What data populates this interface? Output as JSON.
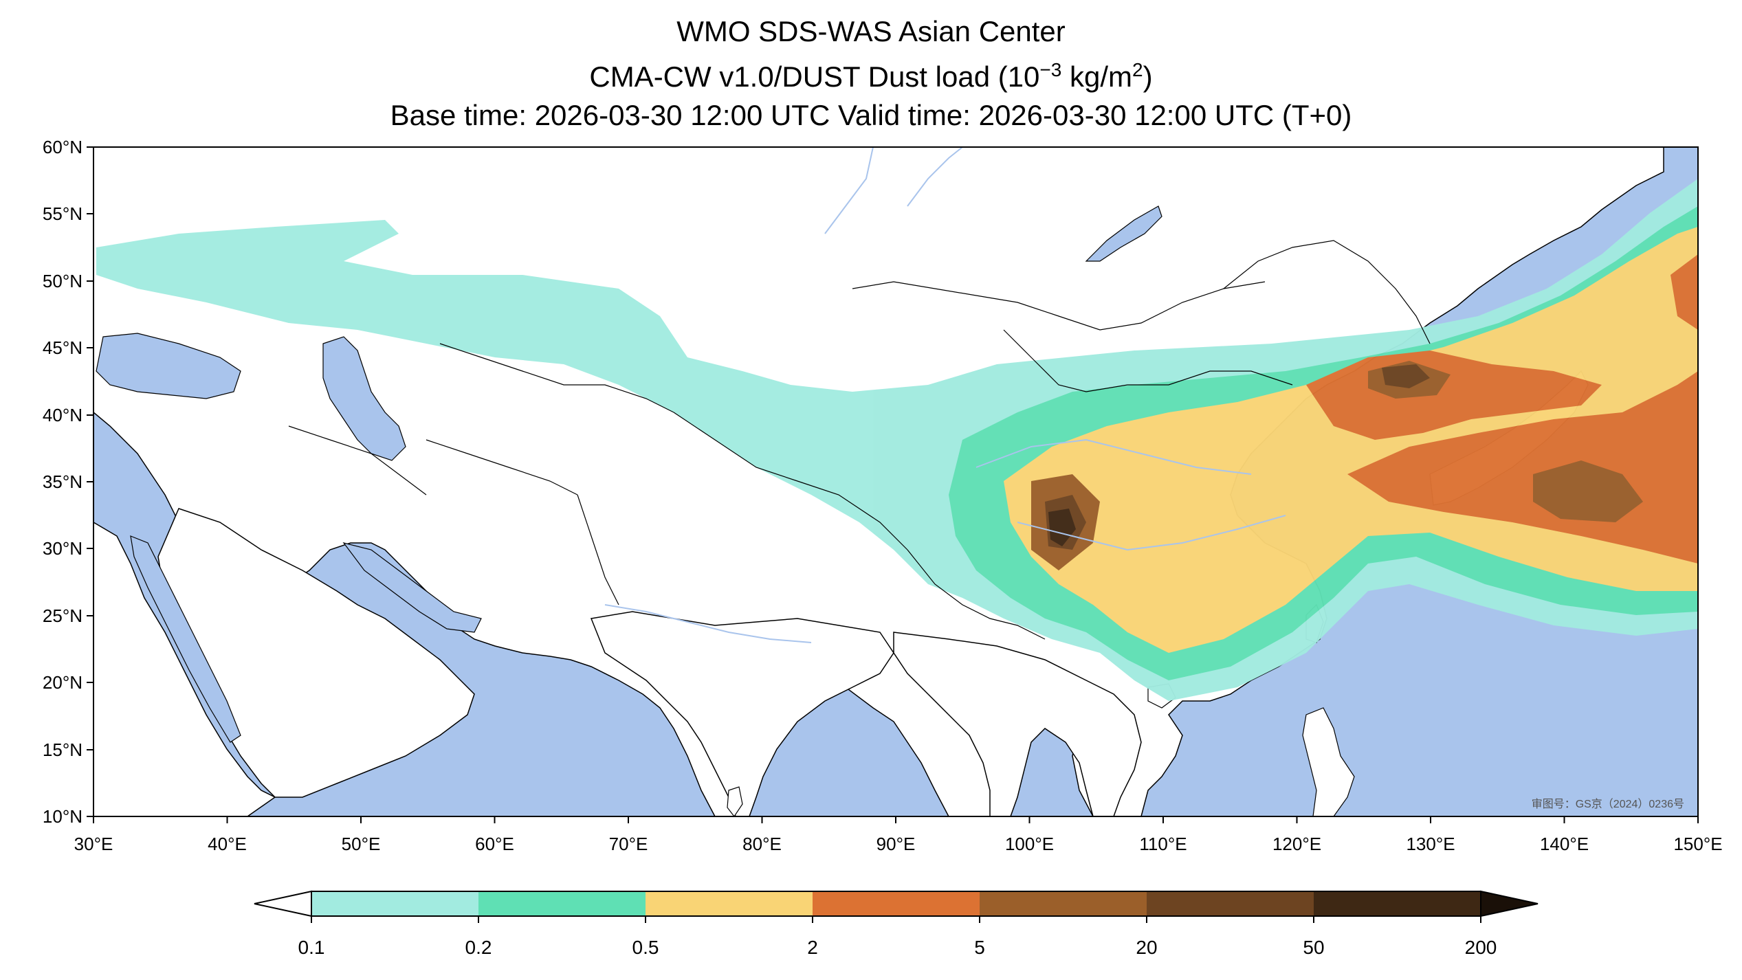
{
  "title": {
    "line1": "WMO SDS-WAS Asian Center",
    "line2_prefix": "CMA-CW v1.0/DUST Dust load (10",
    "line2_sup1": "−3",
    "line2_mid": " kg/m",
    "line2_sup2": "2",
    "line2_suffix": ")",
    "line3": "Base time: 2026-03-30 12:00 UTC Valid time: 2026-03-30 12:00 UTC (T+0)"
  },
  "map": {
    "lon_range": [
      30,
      150
    ],
    "lat_range": [
      10,
      60
    ],
    "lon_ticks": [
      "30°E",
      "40°E",
      "50°E",
      "60°E",
      "70°E",
      "80°E",
      "90°E",
      "100°E",
      "110°E",
      "120°E",
      "130°E",
      "140°E",
      "150°E"
    ],
    "lat_ticks": [
      "60°N",
      "55°N",
      "50°N",
      "45°N",
      "40°N",
      "35°N",
      "30°N",
      "25°N",
      "20°N",
      "15°N",
      "10°N"
    ],
    "watermark": "审图号：GS京（2024）0236号",
    "colors": {
      "ocean": "#a9c4ec",
      "land": "#ffffff",
      "border": "#000000",
      "river": "#a9c4ec"
    }
  },
  "colorbar": {
    "bounds": [
      "0.1",
      "0.2",
      "0.5",
      "2",
      "5",
      "20",
      "50",
      "200"
    ],
    "colors": [
      "#a2ebe0",
      "#5fe0b4",
      "#f9d475",
      "#dc7233",
      "#9b5f2a",
      "#6d4421",
      "#3e2814"
    ],
    "under_color": "#ffffff",
    "over_color": "#1a1008"
  }
}
